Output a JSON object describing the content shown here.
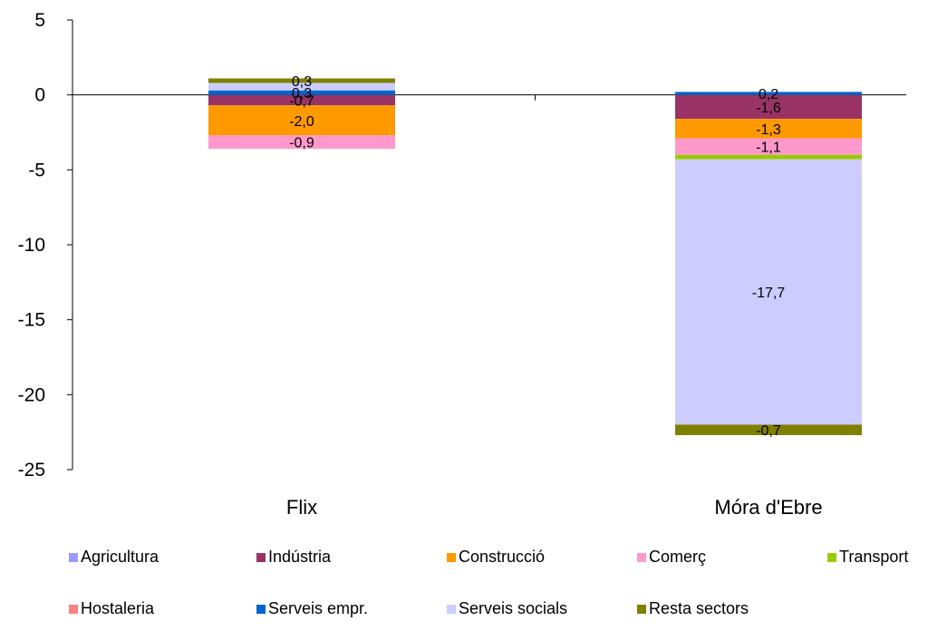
{
  "chart_data": {
    "type": "bar",
    "stacked": true,
    "title": "",
    "xlabel": "",
    "ylabel": "",
    "ylim": [
      -25,
      5
    ],
    "yticks": [
      5,
      0,
      -5,
      -10,
      -15,
      -20,
      -25
    ],
    "grid": false,
    "legend_position": "bottom",
    "categories": [
      "Flix",
      "Móra d'Ebre"
    ],
    "series": [
      {
        "name": "Agricultura",
        "color": "#9999ff",
        "values": [
          0.0,
          0.0
        ],
        "labels": [
          "",
          ""
        ]
      },
      {
        "name": "Indústria",
        "color": "#993366",
        "values": [
          -0.7,
          -1.6
        ],
        "labels": [
          "-0,7",
          "-1,6"
        ]
      },
      {
        "name": "Construcció",
        "color": "#ff9900",
        "values": [
          -2.0,
          -1.3
        ],
        "labels": [
          "-2,0",
          "-1,3"
        ]
      },
      {
        "name": "Comerç",
        "color": "#ff99cc",
        "values": [
          -0.9,
          -1.1
        ],
        "labels": [
          "-0,9",
          "-1,1"
        ]
      },
      {
        "name": "Transport",
        "color": "#99cc00",
        "values": [
          0.0,
          -0.3
        ],
        "labels": [
          "",
          ""
        ]
      },
      {
        "name": "Hostaleria",
        "color": "#ff8080",
        "values": [
          0.0,
          0.0
        ],
        "labels": [
          "",
          ""
        ]
      },
      {
        "name": "Serveis empr.",
        "color": "#0066cc",
        "values": [
          0.3,
          0.2
        ],
        "labels": [
          "0,3",
          "0,2"
        ]
      },
      {
        "name": "Serveis socials",
        "color": "#ccccff",
        "values": [
          0.5,
          -17.7
        ],
        "labels": [
          "",
          "-17,7"
        ]
      },
      {
        "name": "Resta sectors",
        "color": "#808000",
        "values": [
          0.3,
          -0.7
        ],
        "labels": [
          "0,3",
          "-0,7"
        ]
      }
    ]
  }
}
